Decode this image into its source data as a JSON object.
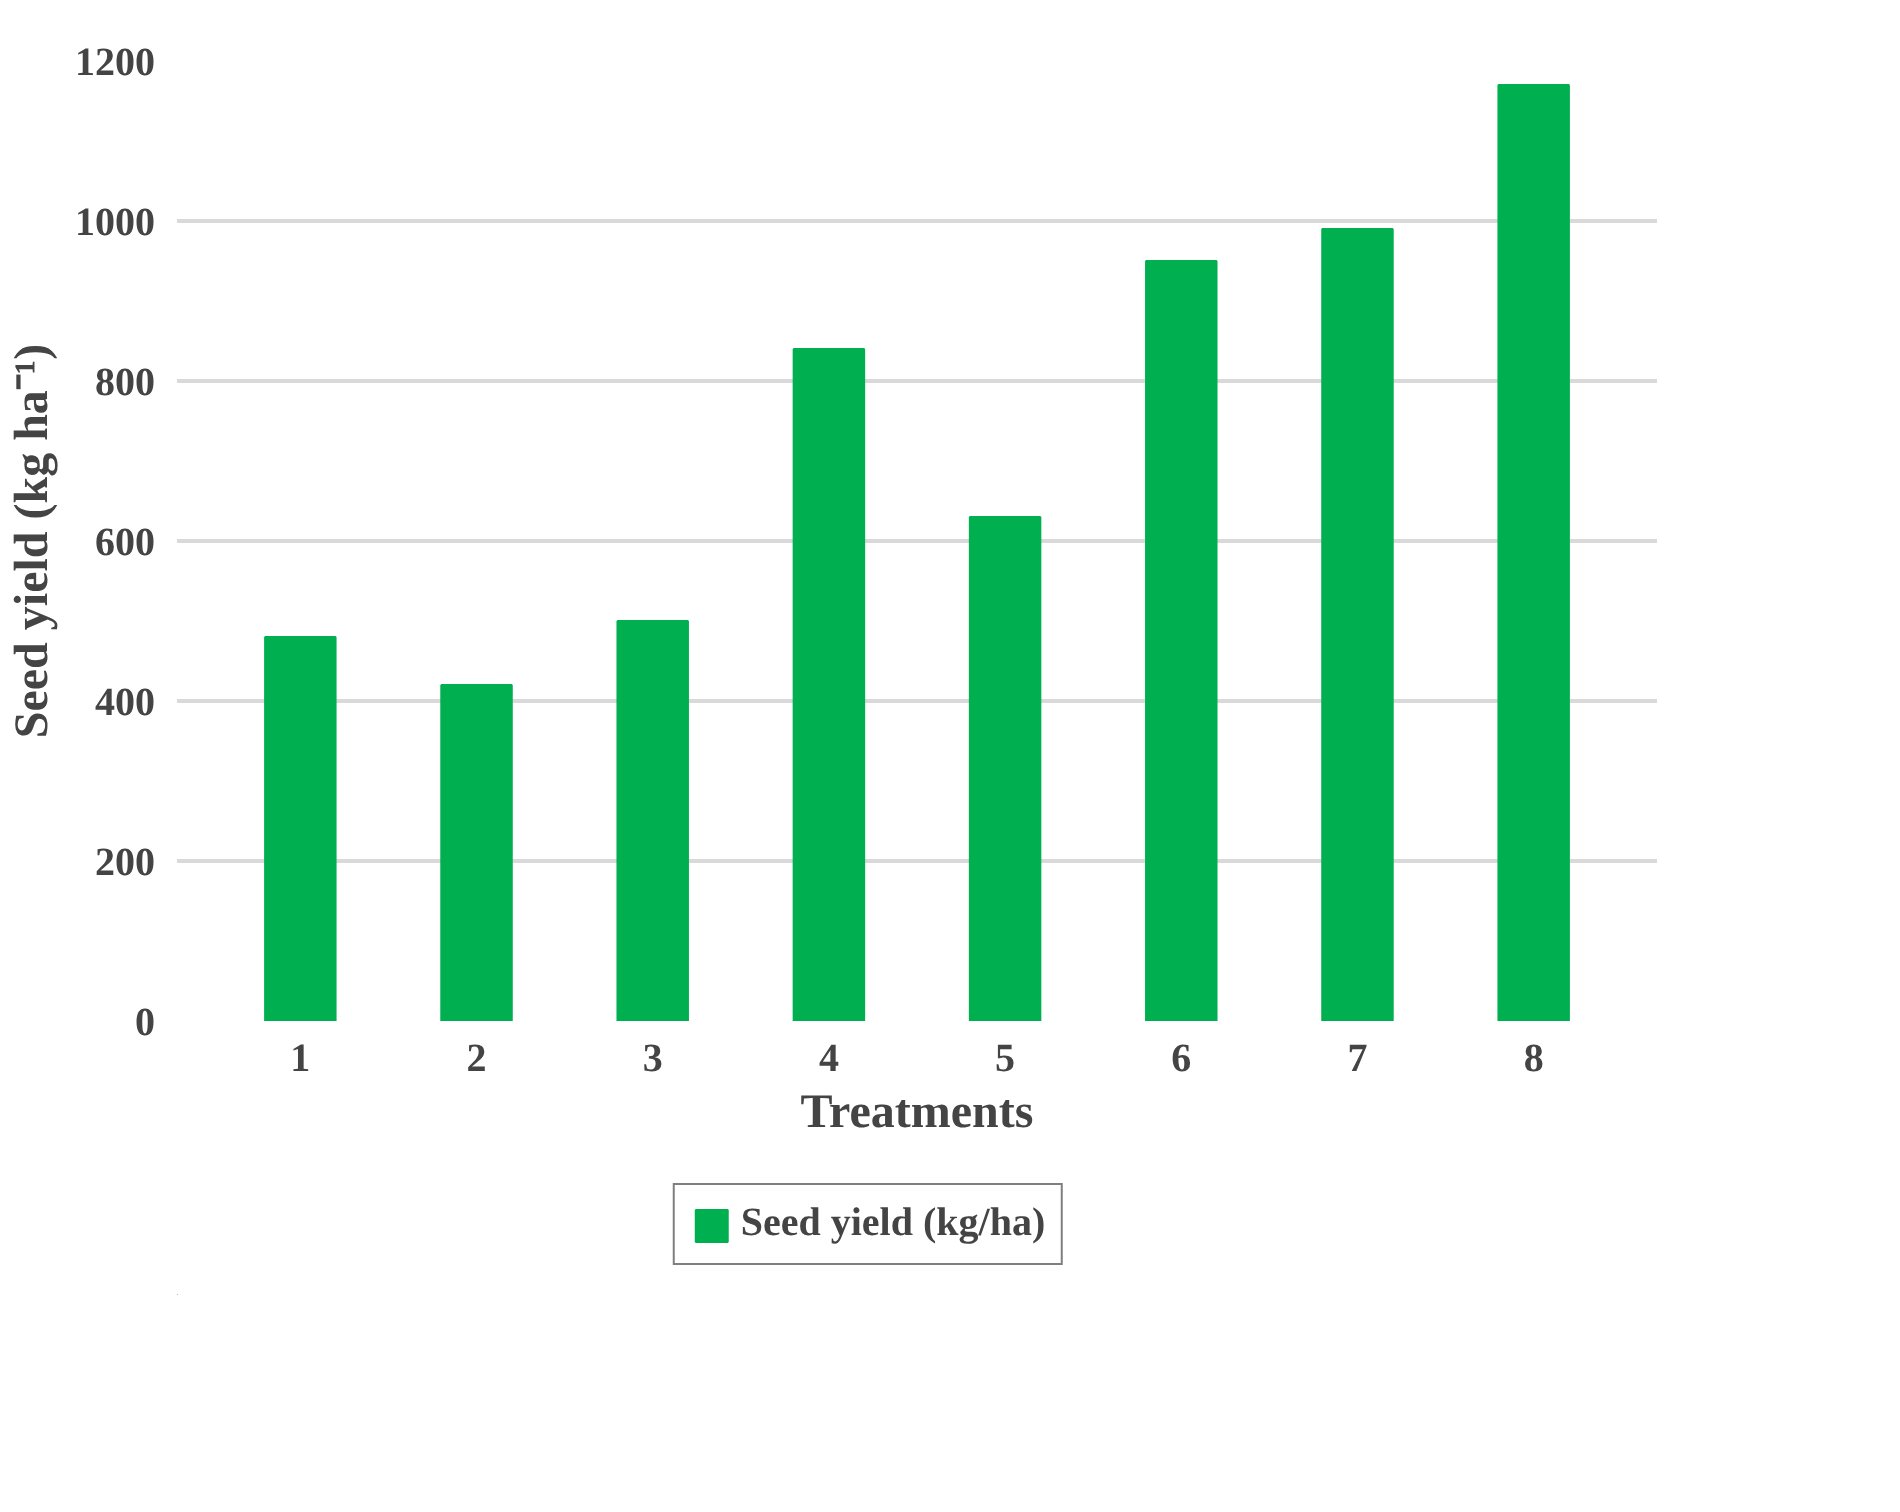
{
  "chart_data": {
    "type": "bar",
    "xlabel": "Treatments",
    "ylabel": "Seed yield (kg ha⁻¹)",
    "categories": [
      "1",
      "2",
      "3",
      "4",
      "5",
      "6",
      "7",
      "8"
    ],
    "series": [
      {
        "name": "Seed yield (kg/ha)",
        "color": "#00b050",
        "values": [
          480,
          420,
          500,
          840,
          630,
          950,
          990,
          1170
        ]
      }
    ],
    "ylim": [
      0,
      1200
    ],
    "yticks": [
      0,
      200,
      400,
      600,
      800,
      1000,
      1200
    ],
    "grid": "y",
    "legend": "bottom"
  }
}
